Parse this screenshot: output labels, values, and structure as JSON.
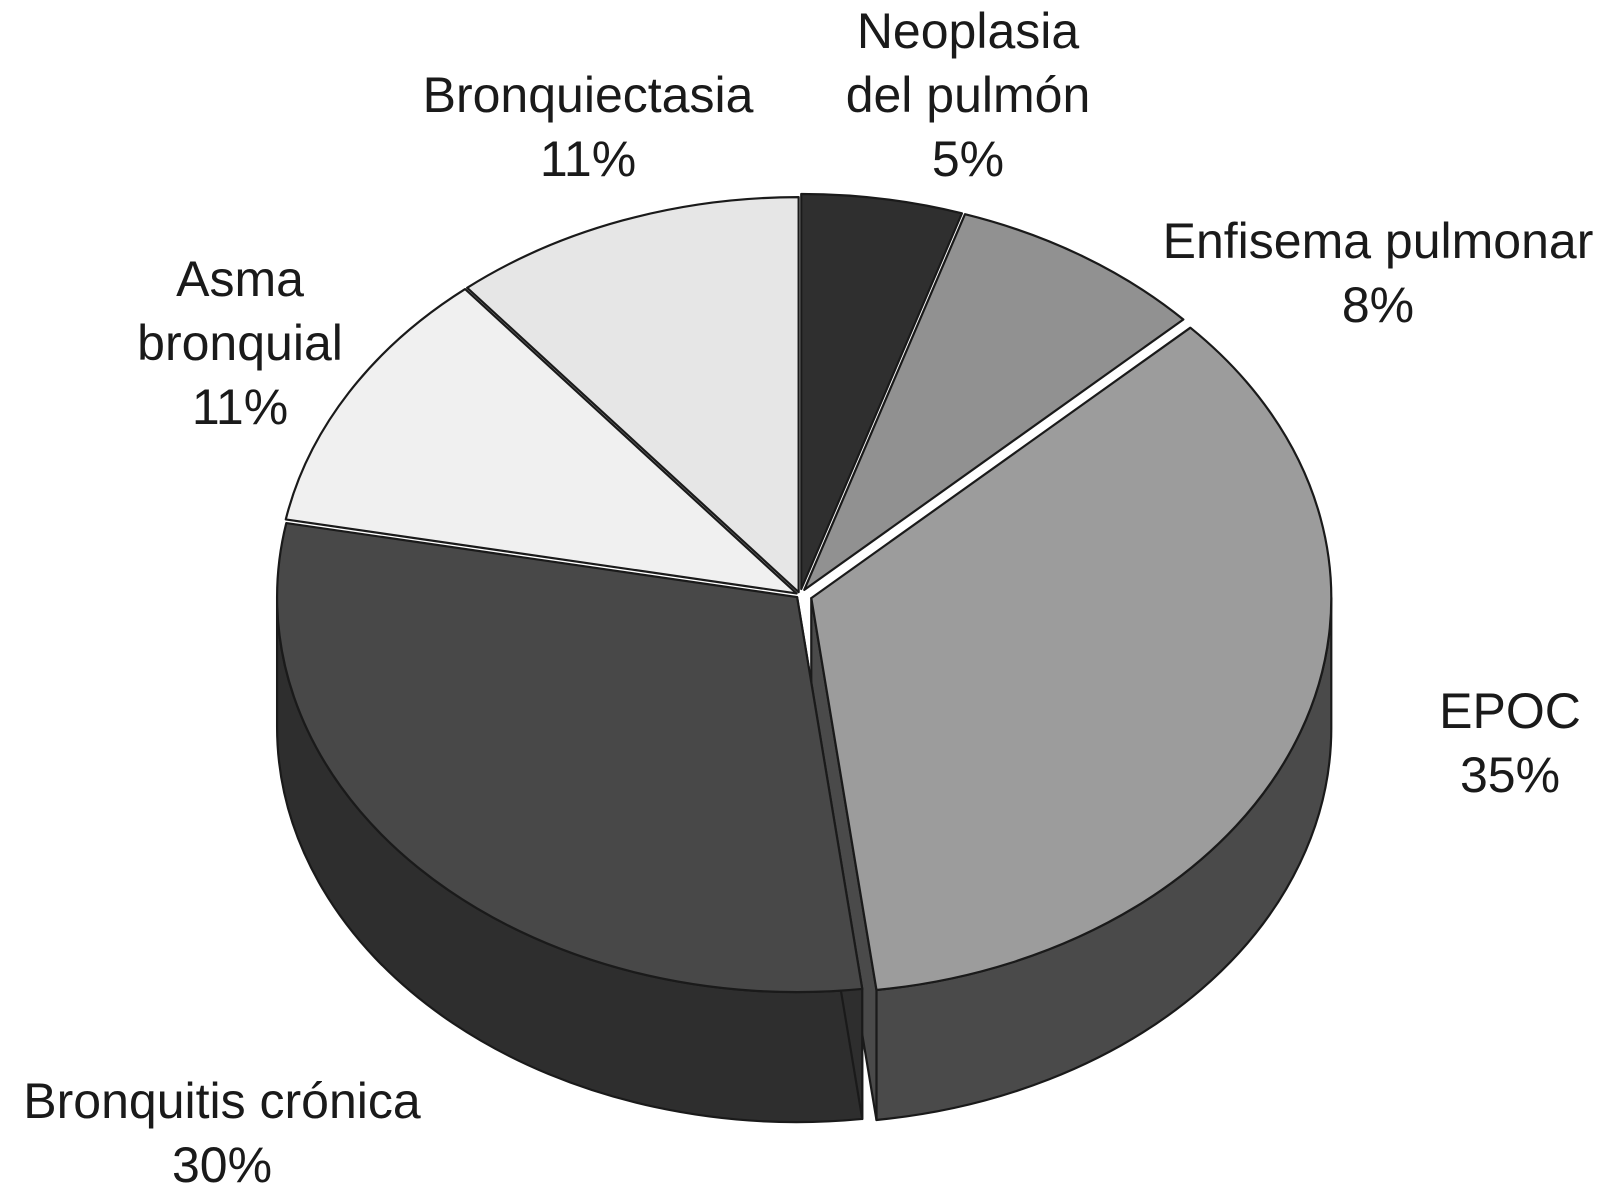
{
  "chart_data": {
    "type": "pie",
    "three_d": true,
    "exploded": true,
    "slices": [
      {
        "label": [
          "Neoplasia",
          "del pulmón"
        ],
        "percent_text": "5%",
        "value": 5,
        "top_color": "#2f2f2f",
        "side_color": "#1e1e1e"
      },
      {
        "label": [
          "Enfisema pulmonar"
        ],
        "percent_text": "8%",
        "value": 8,
        "top_color": "#919191",
        "side_color": "#222222"
      },
      {
        "label": [
          "EPOC"
        ],
        "percent_text": "35%",
        "value": 35,
        "top_color": "#9c9c9c",
        "side_color": "#4a4a4a"
      },
      {
        "label": [
          "Bronquitis crónica"
        ],
        "percent_text": "30%",
        "value": 30,
        "top_color": "#484848",
        "side_color": "#2e2e2e"
      },
      {
        "label": [
          "Asma",
          "bronquial"
        ],
        "percent_text": "11%",
        "value": 11,
        "top_color": "#f0f0f0",
        "side_color": "#6a6a6a"
      },
      {
        "label": [
          "Bronquiectasia"
        ],
        "percent_text": "11%",
        "value": 11,
        "top_color": "#e6e6e6",
        "side_color": "#5a5a5a"
      }
    ]
  }
}
